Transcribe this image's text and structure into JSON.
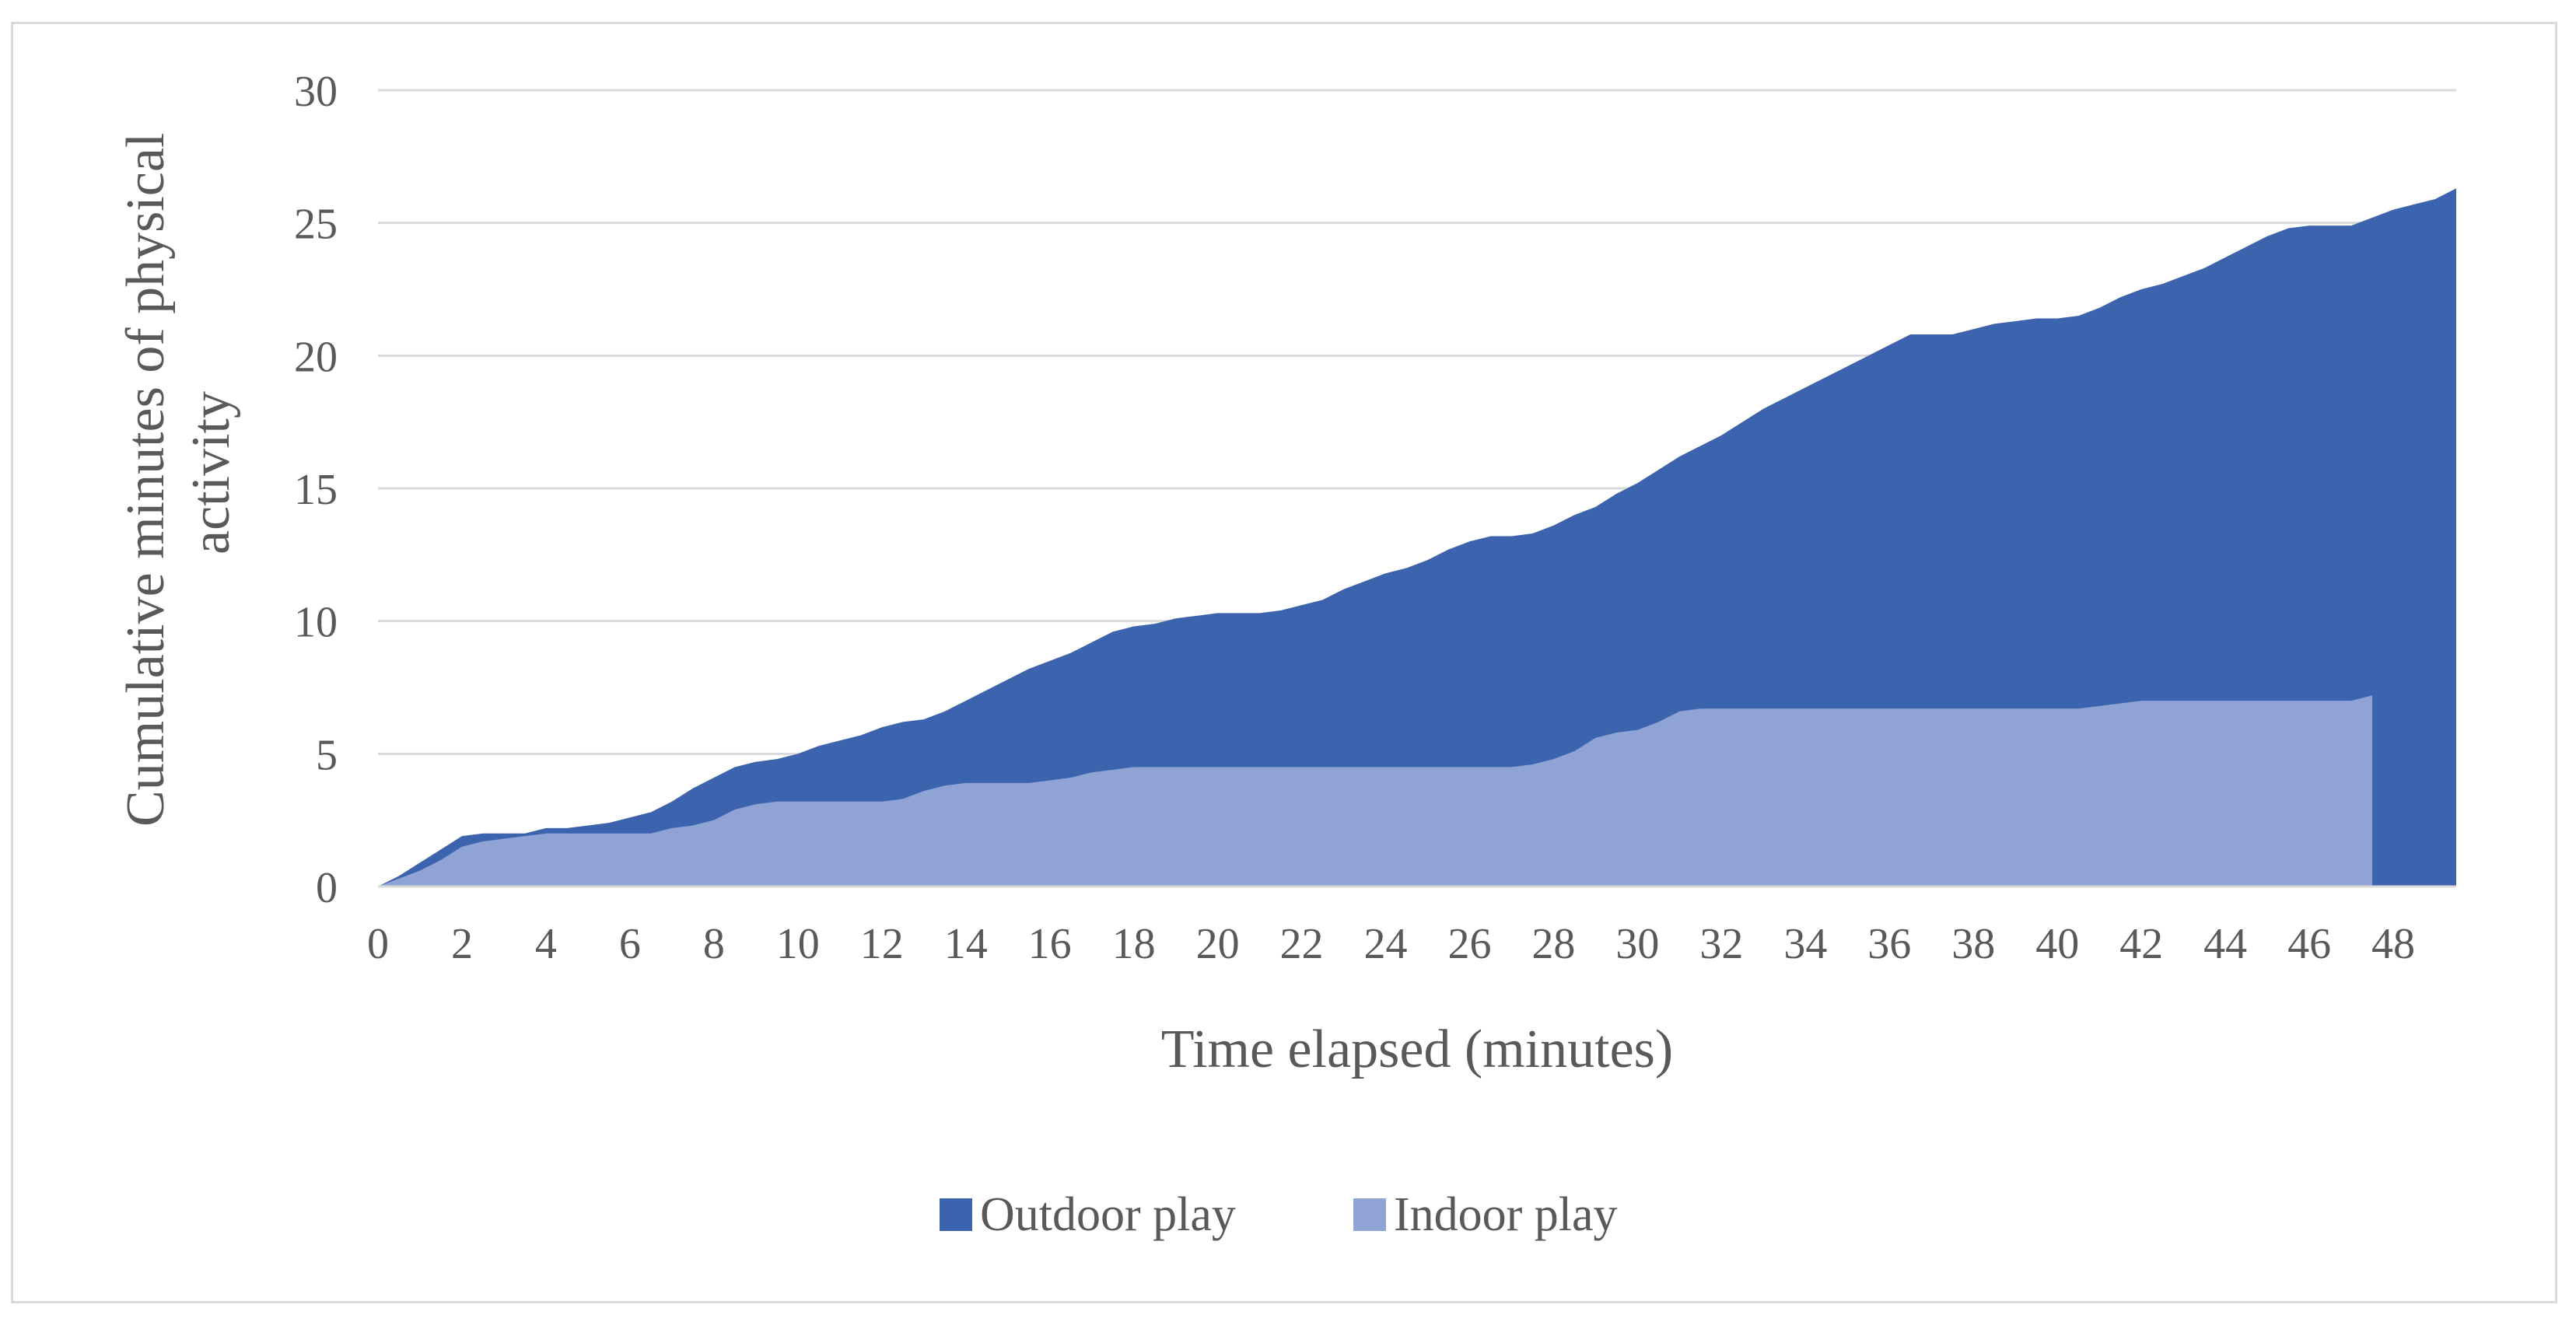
{
  "chart_data": {
    "type": "area",
    "stacked": false,
    "xlabel": "Time elapsed (minutes)",
    "ylabel": [
      "Cumulative minutes of physical",
      "activity"
    ],
    "xlim": [
      0,
      49.5
    ],
    "ylim": [
      0,
      30
    ],
    "x_ticks": [
      0,
      2,
      4,
      6,
      8,
      10,
      12,
      14,
      16,
      18,
      20,
      22,
      24,
      26,
      28,
      30,
      32,
      34,
      36,
      38,
      40,
      42,
      44,
      46,
      48
    ],
    "y_ticks": [
      0,
      5,
      10,
      15,
      20,
      25,
      30
    ],
    "grid": "horizontal",
    "legend_position": "bottom",
    "series": [
      {
        "name": "Outdoor play",
        "color": "#3c64ae",
        "x": [
          0,
          0.5,
          1,
          1.5,
          2,
          2.5,
          3,
          3.5,
          4,
          4.5,
          5,
          5.5,
          6,
          6.5,
          7,
          7.5,
          8,
          8.5,
          9,
          9.5,
          10,
          10.5,
          11,
          11.5,
          12,
          12.5,
          13,
          13.5,
          14,
          14.5,
          15,
          15.5,
          16,
          16.5,
          17,
          17.5,
          18,
          18.5,
          19,
          19.5,
          20,
          20.5,
          21,
          21.5,
          22,
          22.5,
          23,
          23.5,
          24,
          24.5,
          25,
          25.5,
          26,
          26.5,
          27,
          27.5,
          28,
          28.5,
          29,
          29.5,
          30,
          30.5,
          31,
          31.5,
          32,
          32.5,
          33,
          33.5,
          34,
          34.5,
          35,
          35.5,
          36,
          36.5,
          37,
          37.5,
          38,
          38.5,
          39,
          39.5,
          40,
          40.5,
          41,
          41.5,
          42,
          42.5,
          43,
          43.5,
          44,
          44.5,
          45,
          45.5,
          46,
          46.5,
          47,
          47.5,
          48,
          48.5,
          49,
          49.5
        ],
        "values": [
          0,
          0.4,
          0.9,
          1.4,
          1.9,
          2.0,
          2.0,
          2.0,
          2.2,
          2.2,
          2.3,
          2.4,
          2.6,
          2.8,
          3.2,
          3.7,
          4.1,
          4.5,
          4.7,
          4.8,
          5.0,
          5.3,
          5.5,
          5.7,
          6.0,
          6.2,
          6.3,
          6.6,
          7.0,
          7.4,
          7.8,
          8.2,
          8.5,
          8.8,
          9.2,
          9.6,
          9.8,
          9.9,
          10.1,
          10.2,
          10.3,
          10.3,
          10.3,
          10.4,
          10.6,
          10.8,
          11.2,
          11.5,
          11.8,
          12.0,
          12.3,
          12.7,
          13.0,
          13.2,
          13.2,
          13.3,
          13.6,
          14.0,
          14.3,
          14.8,
          15.2,
          15.7,
          16.2,
          16.6,
          17.0,
          17.5,
          18.0,
          18.4,
          18.8,
          19.2,
          19.6,
          20.0,
          20.4,
          20.8,
          20.8,
          20.8,
          21.0,
          21.2,
          21.3,
          21.4,
          21.4,
          21.5,
          21.8,
          22.2,
          22.5,
          22.7,
          23.0,
          23.3,
          23.7,
          24.1,
          24.5,
          24.8,
          24.9,
          24.9,
          24.9,
          25.2,
          25.5,
          25.7,
          25.9,
          26.3
        ]
      },
      {
        "name": "Indoor play",
        "color": "#8fa3d5",
        "x": [
          0,
          0.5,
          1,
          1.5,
          2,
          2.5,
          3,
          3.5,
          4,
          4.5,
          5,
          5.5,
          6,
          6.5,
          7,
          7.5,
          8,
          8.5,
          9,
          9.5,
          10,
          10.5,
          11,
          11.5,
          12,
          12.5,
          13,
          13.5,
          14,
          14.5,
          15,
          15.5,
          16,
          16.5,
          17,
          17.5,
          18,
          18.5,
          19,
          19.5,
          20,
          20.5,
          21,
          21.5,
          22,
          22.5,
          23,
          23.5,
          24,
          24.5,
          25,
          25.5,
          26,
          26.5,
          27,
          27.5,
          28,
          28.5,
          29,
          29.5,
          30,
          30.5,
          31,
          31.5,
          32,
          32.5,
          33,
          33.5,
          34,
          34.5,
          35,
          35.5,
          36,
          36.5,
          37,
          37.5,
          38,
          38.5,
          39,
          39.5,
          40,
          40.5,
          41,
          41.5,
          42,
          42.5,
          43,
          43.5,
          44,
          44.5,
          45,
          45.5,
          46,
          46.5,
          47,
          47.5
        ],
        "values": [
          0,
          0.3,
          0.6,
          1.0,
          1.5,
          1.7,
          1.8,
          1.9,
          2.0,
          2.0,
          2.0,
          2.0,
          2.0,
          2.0,
          2.2,
          2.3,
          2.5,
          2.9,
          3.1,
          3.2,
          3.2,
          3.2,
          3.2,
          3.2,
          3.2,
          3.3,
          3.6,
          3.8,
          3.9,
          3.9,
          3.9,
          3.9,
          4.0,
          4.1,
          4.3,
          4.4,
          4.5,
          4.5,
          4.5,
          4.5,
          4.5,
          4.5,
          4.5,
          4.5,
          4.5,
          4.5,
          4.5,
          4.5,
          4.5,
          4.5,
          4.5,
          4.5,
          4.5,
          4.5,
          4.5,
          4.6,
          4.8,
          5.1,
          5.6,
          5.8,
          5.9,
          6.2,
          6.6,
          6.7,
          6.7,
          6.7,
          6.7,
          6.7,
          6.7,
          6.7,
          6.7,
          6.7,
          6.7,
          6.7,
          6.7,
          6.7,
          6.7,
          6.7,
          6.7,
          6.7,
          6.7,
          6.7,
          6.8,
          6.9,
          7.0,
          7.0,
          7.0,
          7.0,
          7.0,
          7.0,
          7.0,
          7.0,
          7.0,
          7.0,
          7.0,
          7.2
        ]
      }
    ]
  }
}
